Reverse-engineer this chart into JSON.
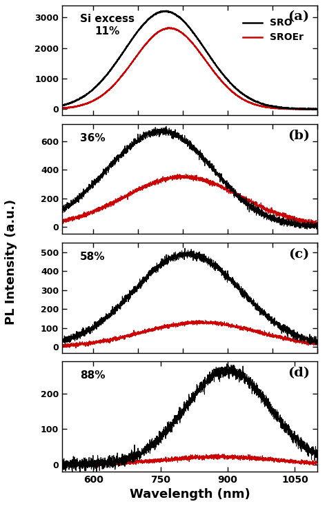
{
  "panels": [
    {
      "label": "a",
      "si_excess": "Si excess\n11%",
      "ylim": [
        -200,
        3400
      ],
      "yticks": [
        0,
        1000,
        2000,
        3000
      ],
      "sro_peak": 760,
      "sro_peak_height": 3200,
      "sro_sigma": 90,
      "sroer_peak": 770,
      "sroer_peak_height": 2650,
      "sroer_sigma": 80,
      "sro_noise": 8,
      "sroer_noise": 6,
      "show_legend": true,
      "lw_sro": 1.5,
      "lw_sroer": 1.5
    },
    {
      "label": "b",
      "si_excess": "36%",
      "ylim": [
        -50,
        720
      ],
      "yticks": [
        0,
        200,
        400,
        600
      ],
      "sro_peak": 760,
      "sro_peak_height": 650,
      "sro_sigma": 110,
      "sroer_peak": 800,
      "sroer_peak_height": 350,
      "sroer_sigma": 130,
      "sro_noise": 12,
      "sroer_noise": 8,
      "show_legend": false,
      "lw_sro": 0.8,
      "lw_sroer": 0.8
    },
    {
      "label": "c",
      "si_excess": "58%",
      "ylim": [
        -30,
        550
      ],
      "yticks": [
        0,
        100,
        200,
        300,
        400,
        500
      ],
      "sro_peak": 810,
      "sro_peak_height": 490,
      "sro_sigma": 120,
      "sroer_peak": 840,
      "sroer_peak_height": 130,
      "sroer_sigma": 130,
      "sro_noise": 10,
      "sroer_noise": 5,
      "show_legend": false,
      "lw_sro": 0.8,
      "lw_sroer": 0.8
    },
    {
      "label": "d",
      "si_excess": "88%",
      "ylim": [
        -20,
        290
      ],
      "yticks": [
        0,
        100,
        200
      ],
      "sro_peak": 900,
      "sro_peak_height": 265,
      "sro_sigma": 95,
      "sroer_peak": 880,
      "sroer_peak_height": 22,
      "sroer_sigma": 120,
      "sro_noise": 8,
      "sroer_noise": 3,
      "show_legend": false,
      "lw_sro": 0.8,
      "lw_sroer": 0.8
    }
  ],
  "xmin": 530,
  "xmax": 1100,
  "xticks": [
    600,
    750,
    900,
    1050
  ],
  "xlabel": "Wavelength (nm)",
  "ylabel": "PL Intensity (a.u.)",
  "sro_color": "#000000",
  "sroer_color": "#cc0000",
  "bg_color": "#ffffff",
  "legend_labels": [
    "SRO",
    "SROEr"
  ]
}
